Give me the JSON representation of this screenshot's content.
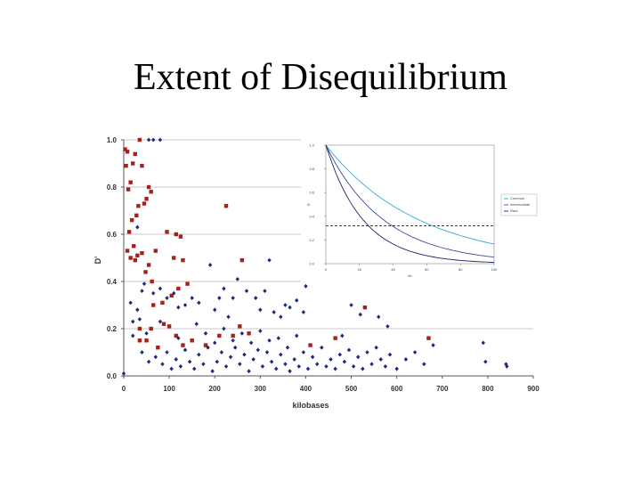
{
  "title": "Extent of Disequilibrium",
  "chart_data": [
    {
      "type": "scatter",
      "xlabel": "kilobases",
      "ylabel": "D'",
      "xlim": [
        0,
        900
      ],
      "ylim": [
        0,
        1.0
      ],
      "x_ticks": [
        "0",
        "100",
        "200",
        "300",
        "400",
        "500",
        "600",
        "700",
        "800",
        "900"
      ],
      "y_ticks": [
        "0.0",
        "0.2",
        "0.4",
        "0.6",
        "0.8",
        "1.0"
      ],
      "grid": true,
      "colors": {
        "red_series": "#a8201a",
        "blue_series": "#1c2a78"
      },
      "series": [
        {
          "color": "#a8201a",
          "marker": "square",
          "points": [
            [
              3,
              0.96
            ],
            [
              8,
              0.95
            ],
            [
              15,
              0.82
            ],
            [
              5,
              0.89
            ],
            [
              20,
              0.9
            ],
            [
              25,
              0.94
            ],
            [
              35,
              1.0
            ],
            [
              40,
              0.89
            ],
            [
              10,
              0.79
            ],
            [
              18,
              0.66
            ],
            [
              12,
              0.61
            ],
            [
              22,
              0.55
            ],
            [
              28,
              0.68
            ],
            [
              32,
              0.72
            ],
            [
              45,
              0.73
            ],
            [
              50,
              0.75
            ],
            [
              55,
              0.8
            ],
            [
              60,
              0.78
            ],
            [
              8,
              0.53
            ],
            [
              15,
              0.5
            ],
            [
              25,
              0.49
            ],
            [
              30,
              0.51
            ],
            [
              40,
              0.52
            ],
            [
              48,
              0.44
            ],
            [
              55,
              0.47
            ],
            [
              62,
              0.4
            ],
            [
              70,
              0.53
            ],
            [
              95,
              0.61
            ],
            [
              115,
              0.6
            ],
            [
              125,
              0.59
            ],
            [
              110,
              0.5
            ],
            [
              130,
              0.49
            ],
            [
              225,
              0.72
            ],
            [
              260,
              0.49
            ],
            [
              65,
              0.3
            ],
            [
              85,
              0.31
            ],
            [
              105,
              0.34
            ],
            [
              120,
              0.37
            ],
            [
              140,
              0.39
            ],
            [
              35,
              0.2
            ],
            [
              50,
              0.15
            ],
            [
              60,
              0.2
            ],
            [
              75,
              0.12
            ],
            [
              88,
              0.22
            ],
            [
              100,
              0.21
            ],
            [
              115,
              0.17
            ],
            [
              130,
              0.13
            ],
            [
              150,
              0.15
            ],
            [
              180,
              0.13
            ],
            [
              210,
              0.17
            ],
            [
              240,
              0.17
            ],
            [
              255,
              0.21
            ],
            [
              275,
              0.18
            ],
            [
              410,
              0.13
            ],
            [
              465,
              0.16
            ],
            [
              530,
              0.29
            ],
            [
              670,
              0.16
            ],
            [
              35,
              0.15
            ]
          ]
        },
        {
          "color": "#1c2a78",
          "marker": "diamond",
          "points": [
            [
              55,
              1.0
            ],
            [
              65,
              1.0
            ],
            [
              80,
              1.0
            ],
            [
              45,
              0.39
            ],
            [
              15,
              0.31
            ],
            [
              30,
              0.63
            ],
            [
              40,
              0.36
            ],
            [
              30,
              0.28
            ],
            [
              65,
              0.35
            ],
            [
              80,
              0.37
            ],
            [
              95,
              0.33
            ],
            [
              110,
              0.35
            ],
            [
              120,
              0.29
            ],
            [
              135,
              0.3
            ],
            [
              150,
              0.33
            ],
            [
              165,
              0.31
            ],
            [
              190,
              0.47
            ],
            [
              200,
              0.28
            ],
            [
              210,
              0.33
            ],
            [
              220,
              0.37
            ],
            [
              230,
              0.25
            ],
            [
              240,
              0.33
            ],
            [
              250,
              0.41
            ],
            [
              270,
              0.36
            ],
            [
              290,
              0.33
            ],
            [
              300,
              0.28
            ],
            [
              310,
              0.36
            ],
            [
              320,
              0.49
            ],
            [
              330,
              0.27
            ],
            [
              345,
              0.25
            ],
            [
              355,
              0.3
            ],
            [
              365,
              0.29
            ],
            [
              380,
              0.32
            ],
            [
              395,
              0.27
            ],
            [
              400,
              0.38
            ],
            [
              20,
              0.23
            ],
            [
              35,
              0.24
            ],
            [
              50,
              0.18
            ],
            [
              40,
              0.1
            ],
            [
              55,
              0.06
            ],
            [
              70,
              0.08
            ],
            [
              85,
              0.05
            ],
            [
              95,
              0.1
            ],
            [
              105,
              0.03
            ],
            [
              115,
              0.07
            ],
            [
              125,
              0.04
            ],
            [
              135,
              0.11
            ],
            [
              145,
              0.06
            ],
            [
              155,
              0.03
            ],
            [
              165,
              0.09
            ],
            [
              175,
              0.05
            ],
            [
              185,
              0.12
            ],
            [
              195,
              0.02
            ],
            [
              205,
              0.06
            ],
            [
              215,
              0.1
            ],
            [
              225,
              0.04
            ],
            [
              235,
              0.08
            ],
            [
              245,
              0.12
            ],
            [
              255,
              0.05
            ],
            [
              265,
              0.09
            ],
            [
              275,
              0.02
            ],
            [
              285,
              0.07
            ],
            [
              295,
              0.11
            ],
            [
              305,
              0.04
            ],
            [
              315,
              0.1
            ],
            [
              325,
              0.06
            ],
            [
              335,
              0.03
            ],
            [
              345,
              0.09
            ],
            [
              355,
              0.05
            ],
            [
              365,
              0.02
            ],
            [
              375,
              0.07
            ],
            [
              385,
              0.04
            ],
            [
              395,
              0.1
            ],
            [
              405,
              0.03
            ],
            [
              415,
              0.08
            ],
            [
              425,
              0.05
            ],
            [
              435,
              0.12
            ],
            [
              445,
              0.04
            ],
            [
              455,
              0.07
            ],
            [
              465,
              0.03
            ],
            [
              475,
              0.09
            ],
            [
              485,
              0.06
            ],
            [
              495,
              0.11
            ],
            [
              505,
              0.04
            ],
            [
              515,
              0.08
            ],
            [
              525,
              0.03
            ],
            [
              535,
              0.1
            ],
            [
              545,
              0.05
            ],
            [
              555,
              0.12
            ],
            [
              565,
              0.07
            ],
            [
              575,
              0.04
            ],
            [
              585,
              0.09
            ],
            [
              600,
              0.03
            ],
            [
              620,
              0.07
            ],
            [
              640,
              0.1
            ],
            [
              660,
              0.05
            ],
            [
              680,
              0.13
            ],
            [
              0,
              0.01
            ],
            [
              790,
              0.14
            ],
            [
              795,
              0.06
            ],
            [
              840,
              0.05
            ],
            [
              842,
              0.04
            ],
            [
              500,
              0.3
            ],
            [
              520,
              0.26
            ],
            [
              560,
              0.25
            ],
            [
              580,
              0.21
            ],
            [
              160,
              0.22
            ],
            [
              180,
              0.18
            ],
            [
              200,
              0.14
            ],
            [
              220,
              0.2
            ],
            [
              240,
              0.15
            ],
            [
              260,
              0.18
            ],
            [
              280,
              0.14
            ],
            [
              300,
              0.19
            ],
            [
              320,
              0.15
            ],
            [
              340,
              0.16
            ],
            [
              360,
              0.12
            ],
            [
              380,
              0.17
            ],
            [
              80,
              0.23
            ],
            [
              120,
              0.16
            ],
            [
              20,
              0.17
            ],
            [
              480,
              0.17
            ]
          ]
        }
      ]
    },
    {
      "type": "line",
      "title": "",
      "xlabel": "kb",
      "ylabel": "D'",
      "xlim": [
        0,
        100
      ],
      "ylim": [
        0,
        1.0
      ],
      "x_ticks": [
        "0",
        "20",
        "40",
        "60",
        "80",
        "100"
      ],
      "y_ticks": [
        "0.0",
        "0.2",
        "0.4",
        "0.6",
        "0.8",
        "1.0"
      ],
      "legend": {
        "placement": "right",
        "labels": [
          "Common",
          "Intermediate",
          "Rare"
        ]
      },
      "reference_line": {
        "y": 0.32,
        "style": "dashed"
      },
      "series": [
        {
          "name": "Common",
          "color": "#39a9d6",
          "decay_rate": 0.018
        },
        {
          "name": "Intermediate",
          "color": "#3a4aa0",
          "decay_rate": 0.029
        },
        {
          "name": "Rare",
          "color": "#1b2260",
          "decay_rate": 0.045
        }
      ]
    }
  ]
}
